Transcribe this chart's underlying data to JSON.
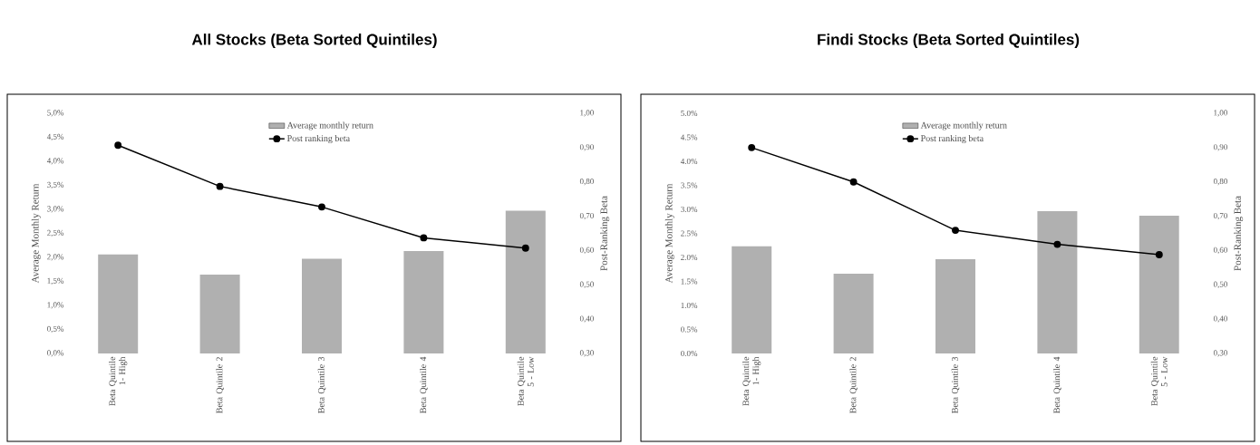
{
  "chart_data": [
    {
      "type": "bar",
      "title": "All Stocks (Beta Sorted Quintiles)",
      "categories": [
        "Beta Quintile 1- High",
        "Beta Quintile 2",
        "Beta Quintile 3",
        "Beta Quintile 4",
        "Beta Quintile 5 - Low"
      ],
      "series": [
        {
          "name": "Average monthly return",
          "type": "bar",
          "color": "#b0b0b0",
          "values": [
            2.06,
            1.64,
            1.97,
            2.13,
            2.97
          ]
        },
        {
          "name": "Post ranking beta",
          "type": "line",
          "axis": "y2",
          "color": "#000000",
          "values": [
            0.907,
            0.787,
            0.727,
            0.637,
            0.607
          ]
        }
      ],
      "ylabel": "Average Monthly Return",
      "y2label": "Post-Ranking Beta",
      "ylim": [
        0,
        5
      ],
      "y2lim": [
        0.3,
        1.0
      ],
      "yticks": [
        {
          "value": 0,
          "label": "0,0%"
        },
        {
          "value": 0.5,
          "label": "0,5%"
        },
        {
          "value": 1,
          "label": "1,0%"
        },
        {
          "value": 1.5,
          "label": "1,5%"
        },
        {
          "value": 2,
          "label": "2,0%"
        },
        {
          "value": 2.5,
          "label": "2,5%"
        },
        {
          "value": 3,
          "label": "3,0%"
        },
        {
          "value": 3.5,
          "label": "3,5%"
        },
        {
          "value": 4,
          "label": "4,0%"
        },
        {
          "value": 4.5,
          "label": "4,5%"
        },
        {
          "value": 5,
          "label": "5,0%"
        }
      ],
      "y2ticks": [
        {
          "value": 0.3,
          "label": "0,30"
        },
        {
          "value": 0.4,
          "label": "0,40"
        },
        {
          "value": 0.5,
          "label": "0,50"
        },
        {
          "value": 0.6,
          "label": "0,60"
        },
        {
          "value": 0.7,
          "label": "0,70"
        },
        {
          "value": 0.8,
          "label": "0,80"
        },
        {
          "value": 0.9,
          "label": "0,90"
        },
        {
          "value": 1.0,
          "label": "1,00"
        }
      ],
      "legend": "top",
      "marker": "circle"
    },
    {
      "type": "bar",
      "title": "Findi Stocks (Beta Sorted Quintiles)",
      "categories": [
        "Beta Quintile 1- High",
        "Beta Quintile 2",
        "Beta Quintile 3",
        "Beta Quintile 4",
        "Beta Quintile 5 - Low"
      ],
      "series": [
        {
          "name": "Average monthly return",
          "type": "bar",
          "color": "#b0b0b0",
          "values": [
            2.23,
            1.66,
            1.96,
            2.96,
            2.87
          ]
        },
        {
          "name": "Post ranking beta",
          "type": "line",
          "axis": "y2",
          "color": "#000000",
          "values": [
            0.9,
            0.8,
            0.659,
            0.618,
            0.588
          ]
        }
      ],
      "ylabel": "Average Monthly Return",
      "y2label": "Post-Ranking Beta",
      "ylim": [
        0,
        5
      ],
      "y2lim": [
        0.3,
        1.0
      ],
      "yticks": [
        {
          "value": 0,
          "label": "0.0%"
        },
        {
          "value": 0.5,
          "label": "0.5%"
        },
        {
          "value": 1,
          "label": "1.0%"
        },
        {
          "value": 1.5,
          "label": "1.5%"
        },
        {
          "value": 2,
          "label": "2.0%"
        },
        {
          "value": 2.5,
          "label": "2.5%"
        },
        {
          "value": 3,
          "label": "3.0%"
        },
        {
          "value": 3.5,
          "label": "3.5%"
        },
        {
          "value": 4,
          "label": "4.0%"
        },
        {
          "value": 4.5,
          "label": "4.5%"
        },
        {
          "value": 5,
          "label": "5.0%"
        }
      ],
      "y2ticks": [
        {
          "value": 0.3,
          "label": "0,30"
        },
        {
          "value": 0.4,
          "label": "0,40"
        },
        {
          "value": 0.5,
          "label": "0,50"
        },
        {
          "value": 0.6,
          "label": "0,60"
        },
        {
          "value": 0.7,
          "label": "0,70"
        },
        {
          "value": 0.8,
          "label": "0,80"
        },
        {
          "value": 0.9,
          "label": "0,90"
        },
        {
          "value": 1.0,
          "label": "1,00"
        }
      ],
      "legend": "top",
      "marker": "circle"
    }
  ]
}
